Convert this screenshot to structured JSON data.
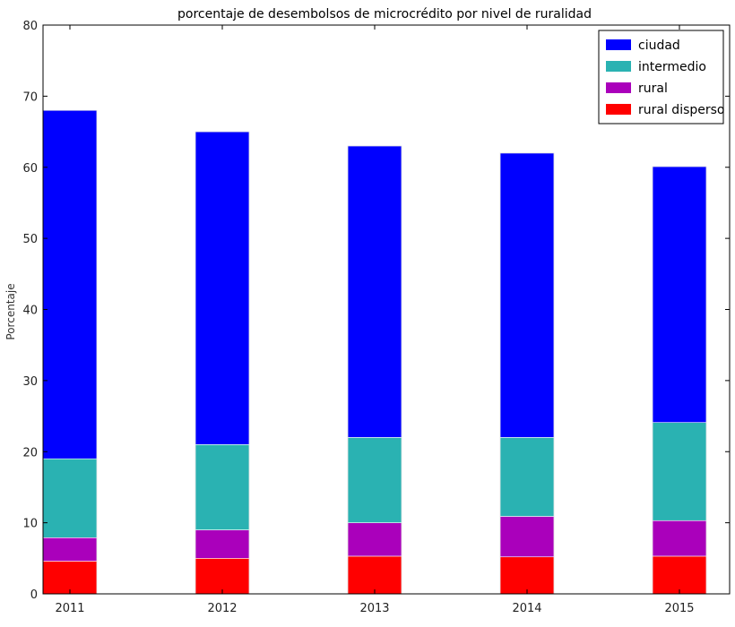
{
  "chart_data": {
    "type": "bar",
    "stacked": true,
    "title": "porcentaje de desembolsos de microcrédito por nivel de ruralidad",
    "xlabel": "",
    "ylabel": "Porcentaje",
    "categories": [
      "2011",
      "2012",
      "2013",
      "2014",
      "2015"
    ],
    "ylim": [
      0,
      80
    ],
    "yticks": [
      0,
      10,
      20,
      30,
      40,
      50,
      60,
      70,
      80
    ],
    "grid": false,
    "legend_position": "top-right",
    "series": [
      {
        "name": "rural disperso",
        "color": "#ff0000",
        "values": [
          4.6,
          5.0,
          5.3,
          5.2,
          5.3
        ]
      },
      {
        "name": "rural",
        "color": "#aa00bb",
        "values": [
          3.3,
          4.0,
          4.7,
          5.7,
          5.0
        ]
      },
      {
        "name": "intermedio",
        "color": "#2ab2b2",
        "values": [
          11.1,
          12.0,
          12.0,
          11.1,
          13.8
        ]
      },
      {
        "name": "ciudad",
        "color": "#0000ff",
        "values": [
          49.0,
          44.0,
          41.0,
          40.0,
          36.0
        ]
      }
    ],
    "legend_order": [
      "ciudad",
      "intermedio",
      "rural",
      "rural disperso"
    ]
  }
}
